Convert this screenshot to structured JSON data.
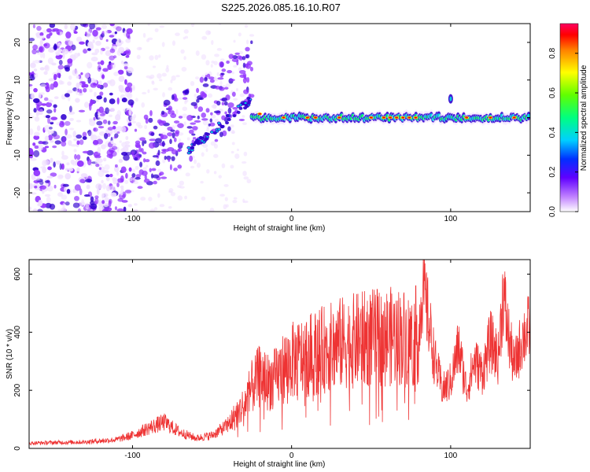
{
  "page_title": "S225.2026.085.16.10.R07",
  "chart_data": [
    {
      "type": "heatmap",
      "name": "spectrogram",
      "title": "S225.2026.085.16.10.R07",
      "xlabel": "Height of straight line (km)",
      "ylabel": "Frequency (Hz)",
      "xlim": [
        -165,
        150
      ],
      "ylim": [
        -25,
        25
      ],
      "xticks": [
        -100,
        0,
        100
      ],
      "xtick_labels": [
        "-100",
        "0",
        "100"
      ],
      "yticks": [
        -20,
        -10,
        0,
        10,
        20
      ],
      "ytick_labels": [
        "-20",
        "-10",
        "0",
        "10",
        "20"
      ],
      "colorbar": {
        "label": "Normalized spectral amplitude",
        "range": [
          0,
          0.95
        ],
        "ticks": [
          0.0,
          0.2,
          0.4,
          0.6,
          0.8
        ],
        "tick_labels": [
          "0.0",
          "0.2",
          "0.4",
          "0.6",
          "0.8"
        ]
      },
      "ridge_description_points": [
        {
          "x": -60,
          "y": -8
        },
        {
          "x": -40,
          "y": 0
        },
        {
          "x": -28,
          "y": 5
        },
        {
          "x": -20,
          "y": 1
        },
        {
          "x": 0,
          "y": 0
        },
        {
          "x": 50,
          "y": 0
        },
        {
          "x": 100,
          "y": 0
        },
        {
          "x": 150,
          "y": 0
        }
      ]
    },
    {
      "type": "line",
      "name": "snr",
      "xlabel": "Height of straight line (km)",
      "ylabel": "SNR (10 * v/v)",
      "xlim": [
        -165,
        150
      ],
      "ylim": [
        0,
        650
      ],
      "xticks": [
        -100,
        0,
        100
      ],
      "xtick_labels": [
        "-100",
        "0",
        "100"
      ],
      "yticks": [
        0,
        200,
        400,
        600
      ],
      "ytick_labels": [
        "0",
        "200",
        "400",
        "600"
      ],
      "series": [
        {
          "name": "SNR",
          "color": "#ee3333",
          "x": [
            -165,
            -150,
            -130,
            -110,
            -100,
            -90,
            -80,
            -70,
            -60,
            -50,
            -40,
            -30,
            -25,
            -20,
            -15,
            -10,
            -5,
            0,
            10,
            20,
            30,
            40,
            50,
            60,
            70,
            75,
            80,
            82,
            85,
            90,
            95,
            100,
            105,
            110,
            115,
            120,
            125,
            130,
            133,
            136,
            140,
            145,
            150
          ],
          "y": [
            18,
            20,
            22,
            30,
            45,
            70,
            90,
            55,
            35,
            45,
            80,
            150,
            210,
            250,
            230,
            240,
            280,
            300,
            320,
            340,
            360,
            370,
            380,
            385,
            385,
            370,
            400,
            560,
            480,
            300,
            200,
            230,
            350,
            200,
            300,
            260,
            370,
            310,
            540,
            400,
            280,
            380,
            420
          ]
        }
      ]
    }
  ],
  "colors": {
    "colormap": [
      "#f0e0ff",
      "#9030ff",
      "#3000d0",
      "#0030ff",
      "#00e0e0",
      "#00ff40",
      "#ffff00",
      "#ff9000",
      "#ff0000",
      "#ff00a0"
    ],
    "line": "#ee3333"
  }
}
